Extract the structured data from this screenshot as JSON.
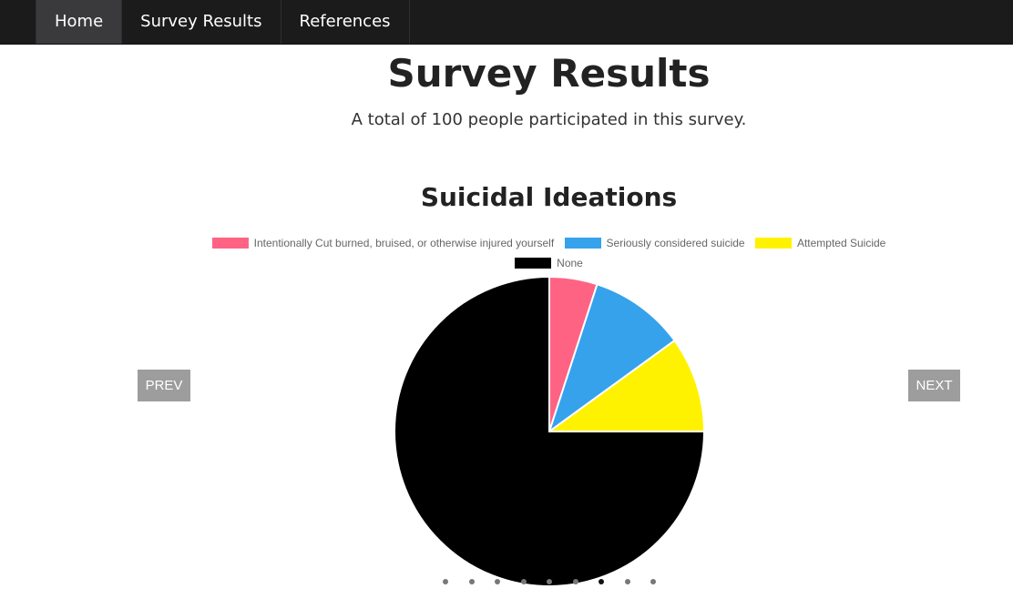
{
  "nav": {
    "items": [
      {
        "label": "Home",
        "active": true
      },
      {
        "label": "Survey Results",
        "active": false
      },
      {
        "label": "References",
        "active": false
      }
    ]
  },
  "page": {
    "title": "Survey Results",
    "subtitle": "A total of 100 people participated in this survey."
  },
  "carousel": {
    "prev_label": "PREV",
    "next_label": "NEXT",
    "slide_count": 9,
    "active_slide": 6
  },
  "chart_data": {
    "type": "pie",
    "title": "Suicidal Ideations",
    "legend_position": "top",
    "categories": [
      "Intentionally Cut burned, bruised, or otherwise injured yourself",
      "Seriously considered suicide",
      "Attempted Suicide",
      "None"
    ],
    "values": [
      5,
      10,
      10,
      75
    ],
    "colors": [
      "#ff6384",
      "#36a2eb",
      "#fff200",
      "#000000"
    ]
  }
}
